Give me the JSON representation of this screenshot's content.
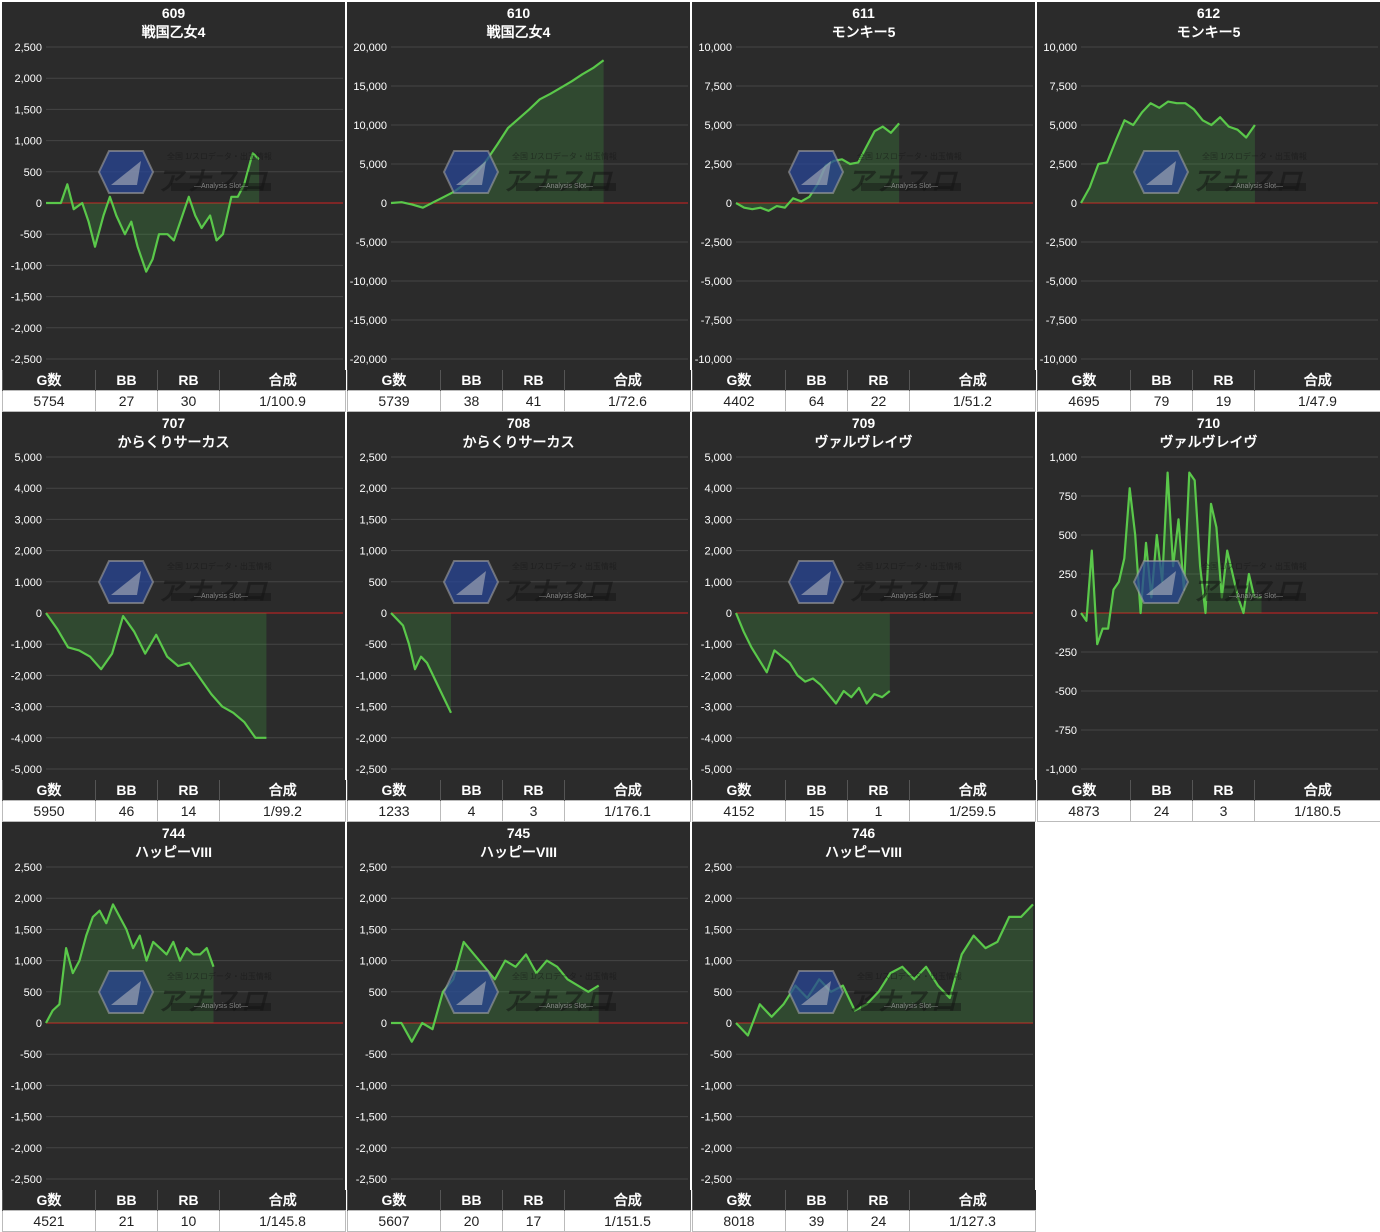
{
  "headers": {
    "games": "G数",
    "bb": "BB",
    "rb": "RB",
    "combined": "合成"
  },
  "colors": {
    "line": "#5ac84a",
    "fill": "rgba(70,180,70,0.22)",
    "zero": "#d02020",
    "grid": "#454545",
    "bg": "#2b2b2b"
  },
  "watermark": {
    "logo_text": "アナスロ",
    "sub_text": "—Analysis Slot—",
    "top_text": "全国 1/スロデータ・出玉情報"
  },
  "chart_data": [
    {
      "type": "line",
      "machine_no": "609",
      "model": "戦国乙女4",
      "games": "5754",
      "bb": "27",
      "rb": "30",
      "combined": "1/100.9",
      "yticks": [
        2500,
        2000,
        1500,
        1000,
        500,
        0,
        -500,
        -1000,
        -1500,
        -2000,
        -2500
      ],
      "ylim": [
        -2500,
        2500
      ],
      "x": [
        0,
        0.03,
        0.07,
        0.1,
        0.13,
        0.17,
        0.2,
        0.23,
        0.27,
        0.3,
        0.33,
        0.37,
        0.4,
        0.43,
        0.47,
        0.5,
        0.53,
        0.57,
        0.6,
        0.63,
        0.67,
        0.7,
        0.73,
        0.77,
        0.8,
        0.83,
        0.87,
        0.9,
        0.93,
        0.97,
        1.0
      ],
      "values": [
        0,
        0,
        0,
        300,
        -100,
        0,
        -300,
        -700,
        -200,
        100,
        -200,
        -500,
        -300,
        -700,
        -1100,
        -900,
        -500,
        -500,
        -600,
        -300,
        100,
        -200,
        -400,
        -200,
        -600,
        -500,
        100,
        100,
        300,
        800,
        700
      ]
    },
    {
      "type": "line",
      "machine_no": "610",
      "model": "戦国乙女4",
      "games": "5739",
      "bb": "38",
      "rb": "41",
      "combined": "1/72.6",
      "yticks": [
        20000,
        15000,
        10000,
        5000,
        0,
        -5000,
        -10000,
        -15000,
        -20000
      ],
      "ylim": [
        -20000,
        20000
      ],
      "x": [
        0,
        0.05,
        0.1,
        0.15,
        0.2,
        0.25,
        0.3,
        0.35,
        0.4,
        0.45,
        0.5,
        0.55,
        0.6,
        0.65,
        0.7,
        0.75,
        0.8,
        0.85,
        0.9,
        0.95,
        1.0
      ],
      "values": [
        0,
        100,
        -200,
        -600,
        100,
        800,
        1500,
        2500,
        3800,
        5500,
        7500,
        9600,
        10800,
        12000,
        13300,
        14000,
        14800,
        15600,
        16500,
        17300,
        18300
      ]
    },
    {
      "type": "line",
      "machine_no": "611",
      "model": "モンキー5",
      "games": "4402",
      "bb": "64",
      "rb": "22",
      "combined": "1/51.2",
      "yticks": [
        10000,
        7500,
        5000,
        2500,
        0,
        -2500,
        -5000,
        -7500,
        -10000
      ],
      "ylim": [
        -10000,
        10000
      ],
      "x": [
        0,
        0.05,
        0.1,
        0.15,
        0.2,
        0.25,
        0.3,
        0.35,
        0.4,
        0.45,
        0.5,
        0.55,
        0.6,
        0.65,
        0.7,
        0.75,
        0.8,
        0.85,
        0.9,
        0.95,
        1.0
      ],
      "values": [
        0,
        -300,
        -400,
        -300,
        -500,
        -200,
        -300,
        300,
        100,
        400,
        1200,
        2400,
        2700,
        2800,
        2500,
        2600,
        3600,
        4600,
        4900,
        4500,
        5100
      ]
    },
    {
      "type": "line",
      "machine_no": "612",
      "model": "モンキー5",
      "games": "4695",
      "bb": "79",
      "rb": "19",
      "combined": "1/47.9",
      "yticks": [
        10000,
        7500,
        5000,
        2500,
        0,
        -2500,
        -5000,
        -7500,
        -10000
      ],
      "ylim": [
        -10000,
        10000
      ],
      "x": [
        0,
        0.05,
        0.1,
        0.15,
        0.2,
        0.25,
        0.3,
        0.35,
        0.4,
        0.45,
        0.5,
        0.55,
        0.6,
        0.65,
        0.7,
        0.75,
        0.8,
        0.85,
        0.9,
        0.95,
        1.0
      ],
      "values": [
        0,
        1000,
        2500,
        2600,
        4000,
        5300,
        5000,
        5800,
        6400,
        6100,
        6500,
        6400,
        6400,
        6000,
        5300,
        5000,
        5500,
        4900,
        4700,
        4200,
        5000
      ]
    },
    {
      "type": "line",
      "machine_no": "707",
      "model": "からくりサーカス",
      "games": "5950",
      "bb": "46",
      "rb": "14",
      "combined": "1/99.2",
      "yticks": [
        5000,
        4000,
        3000,
        2000,
        1000,
        0,
        -1000,
        -2000,
        -3000,
        -4000,
        -5000
      ],
      "ylim": [
        -5000,
        5000
      ],
      "x": [
        0,
        0.05,
        0.1,
        0.15,
        0.2,
        0.25,
        0.3,
        0.35,
        0.4,
        0.45,
        0.5,
        0.55,
        0.6,
        0.65,
        0.7,
        0.75,
        0.8,
        0.85,
        0.9,
        0.95,
        1.0
      ],
      "values": [
        0,
        -500,
        -1100,
        -1200,
        -1400,
        -1800,
        -1300,
        -100,
        -600,
        -1300,
        -700,
        -1400,
        -1700,
        -1600,
        -2100,
        -2600,
        -3000,
        -3200,
        -3500,
        -4000,
        -4000
      ]
    },
    {
      "type": "line",
      "machine_no": "708",
      "model": "からくりサーカス",
      "games": "1233",
      "bb": "4",
      "rb": "3",
      "combined": "1/176.1",
      "yticks": [
        2500,
        2000,
        1500,
        1000,
        500,
        0,
        -500,
        -1000,
        -1500,
        -2000,
        -2500
      ],
      "ylim": [
        -2500,
        2500
      ],
      "x": [
        0,
        0.1,
        0.2,
        0.3,
        0.4,
        0.5,
        0.6,
        0.7,
        0.8,
        0.9,
        1.0
      ],
      "values": [
        0,
        -100,
        -200,
        -500,
        -900,
        -700,
        -800,
        -1000,
        -1200,
        -1400,
        -1600
      ]
    },
    {
      "type": "line",
      "machine_no": "709",
      "model": "ヴァルヴレイヴ",
      "games": "4152",
      "bb": "15",
      "rb": "1",
      "combined": "1/259.5",
      "yticks": [
        5000,
        4000,
        3000,
        2000,
        1000,
        0,
        -1000,
        -2000,
        -3000,
        -4000,
        -5000
      ],
      "ylim": [
        -5000,
        5000
      ],
      "x": [
        0,
        0.05,
        0.1,
        0.15,
        0.2,
        0.25,
        0.3,
        0.35,
        0.4,
        0.45,
        0.5,
        0.55,
        0.6,
        0.65,
        0.7,
        0.75,
        0.8,
        0.85,
        0.9,
        0.95,
        1.0
      ],
      "values": [
        0,
        -600,
        -1100,
        -1500,
        -1900,
        -1200,
        -1400,
        -1600,
        -2000,
        -2200,
        -2100,
        -2300,
        -2600,
        -2900,
        -2500,
        -2700,
        -2400,
        -2900,
        -2600,
        -2700,
        -2500
      ]
    },
    {
      "type": "line",
      "machine_no": "710",
      "model": "ヴァルヴレイヴ",
      "games": "4873",
      "bb": "24",
      "rb": "3",
      "combined": "1/180.5",
      "yticks": [
        1000,
        750,
        500,
        250,
        0,
        -250,
        -500,
        -750,
        -1000
      ],
      "ylim": [
        -1000,
        1000
      ],
      "x": [
        0,
        0.03,
        0.06,
        0.09,
        0.12,
        0.15,
        0.18,
        0.21,
        0.24,
        0.27,
        0.3,
        0.33,
        0.36,
        0.39,
        0.42,
        0.45,
        0.48,
        0.51,
        0.54,
        0.57,
        0.6,
        0.63,
        0.66,
        0.69,
        0.72,
        0.75,
        0.78,
        0.81,
        0.84,
        0.87,
        0.9,
        0.93,
        0.96,
        1.0
      ],
      "values": [
        0,
        -50,
        400,
        -200,
        -100,
        -100,
        150,
        200,
        350,
        800,
        500,
        0,
        450,
        100,
        500,
        200,
        900,
        300,
        600,
        150,
        900,
        850,
        300,
        0,
        700,
        550,
        100,
        400,
        250,
        100,
        0,
        250,
        100,
        100
      ]
    },
    {
      "type": "line",
      "machine_no": "744",
      "model": "ハッピーVIII",
      "games": "4521",
      "bb": "21",
      "rb": "10",
      "combined": "1/145.8",
      "yticks": [
        2500,
        2000,
        1500,
        1000,
        500,
        0,
        -500,
        -1000,
        -1500,
        -2000,
        -2500
      ],
      "ylim": [
        -2500,
        2500
      ],
      "x": [
        0,
        0.04,
        0.08,
        0.12,
        0.16,
        0.2,
        0.24,
        0.28,
        0.32,
        0.36,
        0.4,
        0.44,
        0.48,
        0.52,
        0.56,
        0.6,
        0.64,
        0.68,
        0.72,
        0.76,
        0.8,
        0.84,
        0.88,
        0.92,
        0.96,
        1.0
      ],
      "values": [
        0,
        200,
        300,
        1200,
        800,
        1000,
        1400,
        1700,
        1800,
        1600,
        1900,
        1700,
        1500,
        1200,
        1400,
        1000,
        1300,
        1200,
        1100,
        1300,
        1000,
        1200,
        1100,
        1100,
        1200,
        900
      ]
    },
    {
      "type": "line",
      "machine_no": "745",
      "model": "ハッピーVIII",
      "games": "5607",
      "bb": "20",
      "rb": "17",
      "combined": "1/151.5",
      "yticks": [
        2500,
        2000,
        1500,
        1000,
        500,
        0,
        -500,
        -1000,
        -1500,
        -2000,
        -2500
      ],
      "ylim": [
        -2500,
        2500
      ],
      "x": [
        0,
        0.05,
        0.1,
        0.15,
        0.2,
        0.25,
        0.3,
        0.35,
        0.4,
        0.45,
        0.5,
        0.55,
        0.6,
        0.65,
        0.7,
        0.75,
        0.8,
        0.85,
        0.9,
        0.95,
        1.0
      ],
      "values": [
        0,
        0,
        -300,
        0,
        -100,
        500,
        700,
        1300,
        1100,
        900,
        700,
        1000,
        900,
        1100,
        800,
        1000,
        900,
        700,
        600,
        500,
        600
      ]
    },
    {
      "type": "line",
      "machine_no": "746",
      "model": "ハッピーVIII",
      "games": "8018",
      "bb": "39",
      "rb": "24",
      "combined": "1/127.3",
      "yticks": [
        2500,
        2000,
        1500,
        1000,
        500,
        0,
        -500,
        -1000,
        -1500,
        -2000,
        -2500
      ],
      "ylim": [
        -2500,
        2500
      ],
      "x": [
        0,
        0.04,
        0.08,
        0.12,
        0.16,
        0.2,
        0.24,
        0.28,
        0.32,
        0.36,
        0.4,
        0.44,
        0.48,
        0.52,
        0.56,
        0.6,
        0.64,
        0.68,
        0.72,
        0.76,
        0.8,
        0.84,
        0.88,
        0.92,
        0.96,
        1.0
      ],
      "values": [
        0,
        -200,
        300,
        100,
        300,
        600,
        400,
        700,
        500,
        600,
        200,
        300,
        500,
        800,
        900,
        700,
        900,
        600,
        400,
        1100,
        1400,
        1200,
        1300,
        1700,
        1700,
        1900
      ]
    }
  ]
}
